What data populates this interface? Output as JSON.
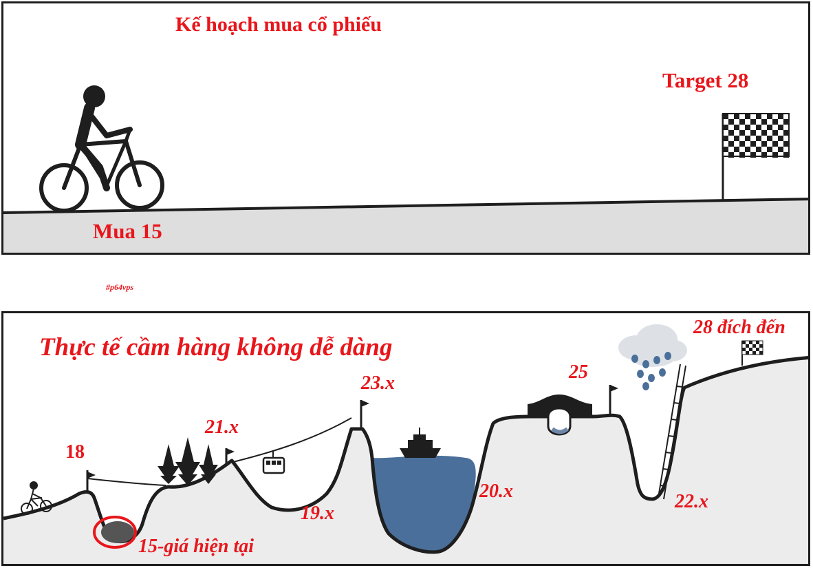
{
  "top_panel": {
    "title": "Kế hoạch mua cổ phiếu",
    "target_label": "Target 28",
    "buy_label": "Mua 15"
  },
  "watermark": "#p64vps",
  "bottom_panel": {
    "title": "Thực tế cầm hàng không dễ dàng",
    "labels": {
      "p18": "18",
      "p21": "21.x",
      "p23": "23.x",
      "p19": "19.x",
      "p20": "20.x",
      "p25": "25",
      "p22": "22.x",
      "p28": "28 đích đến",
      "p15": "15-giá hiện tại"
    }
  },
  "colors": {
    "label_red": "#e8161b",
    "ink": "#1e1e1e",
    "ground": "#dcdcdc",
    "lake": "#4a6f9a"
  },
  "icons": [
    "cyclist-icon",
    "checkered-flag-icon",
    "pine-tree-icon",
    "cable-car-icon",
    "ship-icon",
    "bridge-icon",
    "rain-cloud-icon",
    "ladder-icon",
    "pennant-flag-icon"
  ]
}
